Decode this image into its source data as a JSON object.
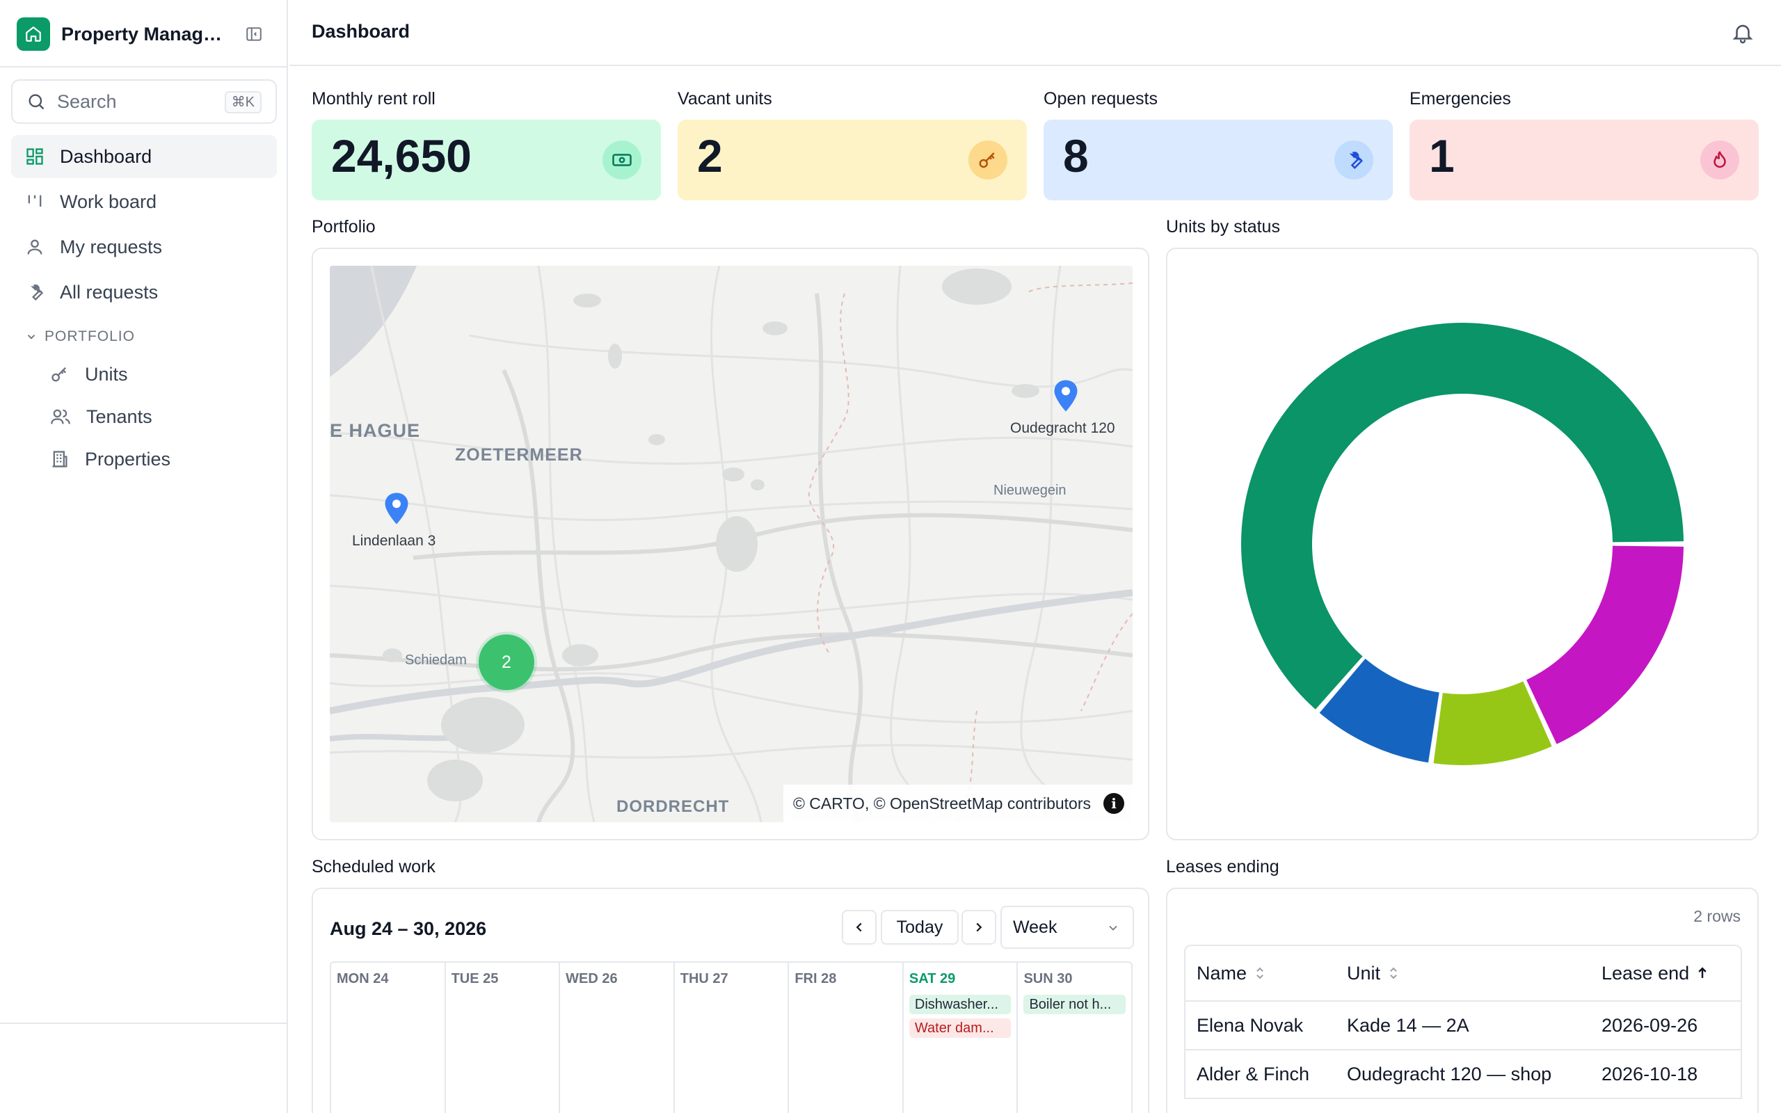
{
  "app": {
    "title": "Property Management"
  },
  "search": {
    "label": "Search",
    "shortcut": "⌘K"
  },
  "nav": {
    "dashboard": "Dashboard",
    "work_board": "Work board",
    "my_requests": "My requests",
    "all_requests": "All requests",
    "section": "PORTFOLIO",
    "units": "Units",
    "tenants": "Tenants",
    "properties": "Properties"
  },
  "header": {
    "title": "Dashboard"
  },
  "kpis": [
    {
      "label": "Monthly rent roll",
      "value": "24,650",
      "color": "#d1fae5",
      "icon": "cash-icon"
    },
    {
      "label": "Vacant units",
      "value": "2",
      "color": "#fef3c7",
      "icon": "key-icon"
    },
    {
      "label": "Open requests",
      "value": "8",
      "color": "#dbeafe",
      "icon": "wrench-icon"
    },
    {
      "label": "Emergencies",
      "value": "1",
      "color": "#fee2e2",
      "icon": "flame-icon"
    }
  ],
  "portfolio": {
    "title": "Portfolio",
    "map_labels": {
      "the_hague": "E HAGUE",
      "zoetermeer": "ZOETERMEER",
      "nieuwegein": "Nieuwegein",
      "schiedam": "Schiedam",
      "dordrecht": "DORDRECHT"
    },
    "pins": [
      "Oudegracht 120",
      "Lindenlaan 3"
    ],
    "cluster_count": "2",
    "attribution": "© CARTO, © OpenStreetMap contributors",
    "info_glyph": "i"
  },
  "units_by_status": {
    "title": "Units by status",
    "chart_data": {
      "type": "pie",
      "donut": true,
      "values": [
        {
          "value": 14,
          "color": "#0a9467"
        },
        {
          "value": 2,
          "color": "#1565c0"
        },
        {
          "value": 2,
          "color": "#97c716"
        },
        {
          "value": 4,
          "color": "#c516c4"
        }
      ]
    }
  },
  "scheduled_work": {
    "title": "Scheduled work",
    "range": "Aug 24 – 30, 2026",
    "today_label": "Today",
    "view": "Week",
    "days": [
      "MON 24",
      "TUE 25",
      "WED 26",
      "THU 27",
      "FRI 28",
      "SAT 29",
      "SUN 30"
    ],
    "today_index": 5,
    "events": {
      "sat": [
        "Dishwasher...",
        "Water dam..."
      ],
      "sun": [
        "Boiler not h..."
      ]
    }
  },
  "leases": {
    "title": "Leases ending",
    "rows_count": "2 rows",
    "columns": [
      "Name",
      "Unit",
      "Lease end"
    ],
    "rows": [
      [
        "Elena Novak",
        "Kade 14 — 2A",
        "2026-09-26"
      ],
      [
        "Alder & Finch",
        "Oudegracht 120 — shop",
        "2026-10-18"
      ]
    ]
  }
}
